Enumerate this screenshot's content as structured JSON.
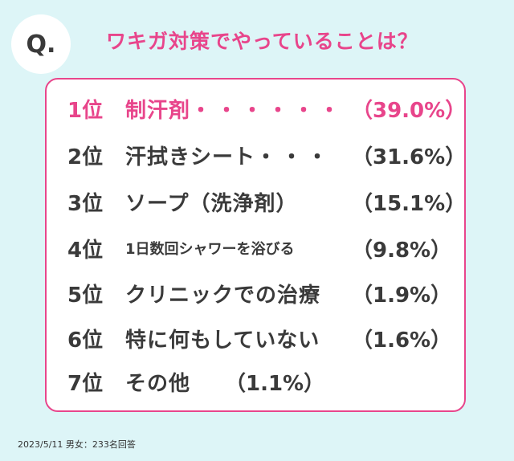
{
  "header": {
    "q_label": "Q.",
    "question": "ワキガ対策でやっていることは？"
  },
  "colors": {
    "accent": "#e8458b",
    "background": "#ddf5f7",
    "text": "#3a3a3a"
  },
  "ranking": [
    {
      "rank": "1位",
      "item": "制汗剤",
      "dots": "・・・・・・",
      "percent": "（39.0%）"
    },
    {
      "rank": "2位",
      "item": "汗拭きシート",
      "dots": "・・・",
      "percent": "（31.6%）"
    },
    {
      "rank": "3位",
      "item": "ソープ（洗浄剤）",
      "dots": "",
      "percent": "（15.1%）"
    },
    {
      "rank": "4位",
      "item": "1日数回シャワーを浴びる",
      "dots": "",
      "percent": "（9.8%）"
    },
    {
      "rank": "5位",
      "item": "クリニックでの治療",
      "dots": "",
      "percent": "（1.9%）"
    },
    {
      "rank": "6位",
      "item": "特に何もしていない",
      "dots": "",
      "percent": "（1.6%）"
    },
    {
      "rank": "7位",
      "item": "その他",
      "dots": "",
      "percent": "（1.1%）"
    }
  ],
  "footer": {
    "note": "2023/5/11 男女：233名回答"
  }
}
